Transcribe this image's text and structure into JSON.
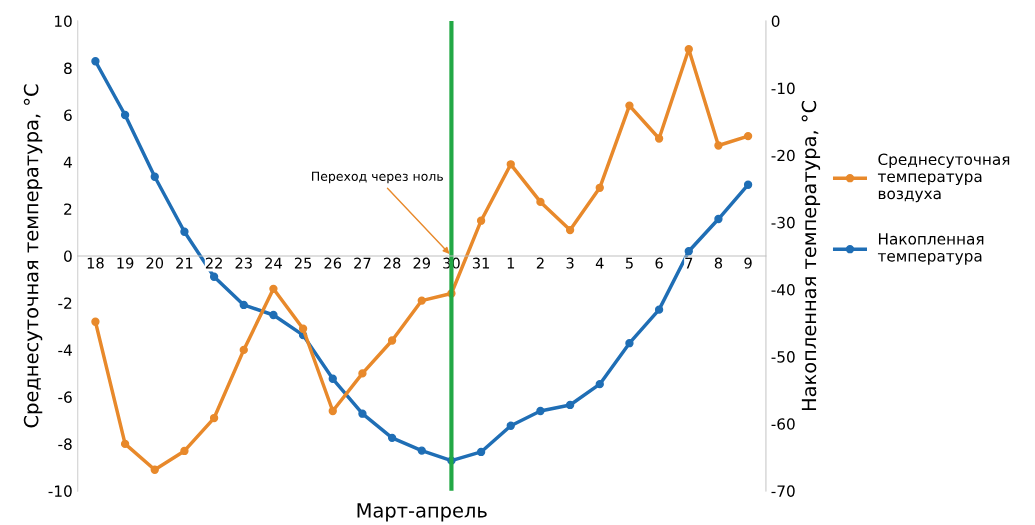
{
  "chart_data": {
    "type": "line",
    "xlabel": "Март-апрель",
    "ylabel": "Среднесуточная температура, °C",
    "y2label": "Накопленная температура, °C",
    "categories": [
      "18",
      "19",
      "20",
      "21",
      "22",
      "23",
      "24",
      "25",
      "26",
      "27",
      "28",
      "29",
      "30",
      "31",
      "1",
      "2",
      "3",
      "4",
      "5",
      "6",
      "7",
      "8",
      "9"
    ],
    "series": [
      {
        "name": "Среднесуточная\nтемпература\nвоздуха",
        "color": "#e8892b",
        "values": [
          -2.8,
          -8.0,
          -9.1,
          -8.3,
          -6.9,
          -4.0,
          -1.4,
          -3.1,
          -6.6,
          -5.0,
          -3.6,
          -1.9,
          -1.6,
          1.5,
          3.9,
          2.3,
          1.1,
          2.9,
          6.4,
          5.0,
          8.8,
          4.7,
          5.1
        ]
      },
      {
        "name": "Накопленная\nтемпература",
        "color": "#1f6eb5",
        "axis": "y2",
        "values": [
          -6,
          -14,
          -23.2,
          -31.4,
          -38.1,
          -42.3,
          -43.8,
          -46.8,
          -53.3,
          -58.5,
          -62.1,
          -64,
          -65.5,
          -64.2,
          -60.3,
          -58.1,
          -57.2,
          -54.1,
          -48,
          -43,
          -34.3,
          -29.5,
          -24.4
        ]
      }
    ],
    "ylim": [
      -10,
      10
    ],
    "yticks": [
      -10,
      -8,
      -6,
      -4,
      -2,
      0,
      2,
      4,
      6,
      8,
      10
    ],
    "y2lim": [
      -70,
      0
    ],
    "y2ticks": [
      -70,
      -60,
      -50,
      -40,
      -30,
      -20,
      -10,
      0
    ],
    "ref_lines": [
      {
        "axis": "x",
        "value": "30",
        "color": "#22a845"
      }
    ],
    "annotations": [
      {
        "text": "Переход через ноль",
        "x": "30",
        "y": 0
      }
    ],
    "marker": "circle",
    "line_style": "solid",
    "legend": "right",
    "grid": false
  }
}
